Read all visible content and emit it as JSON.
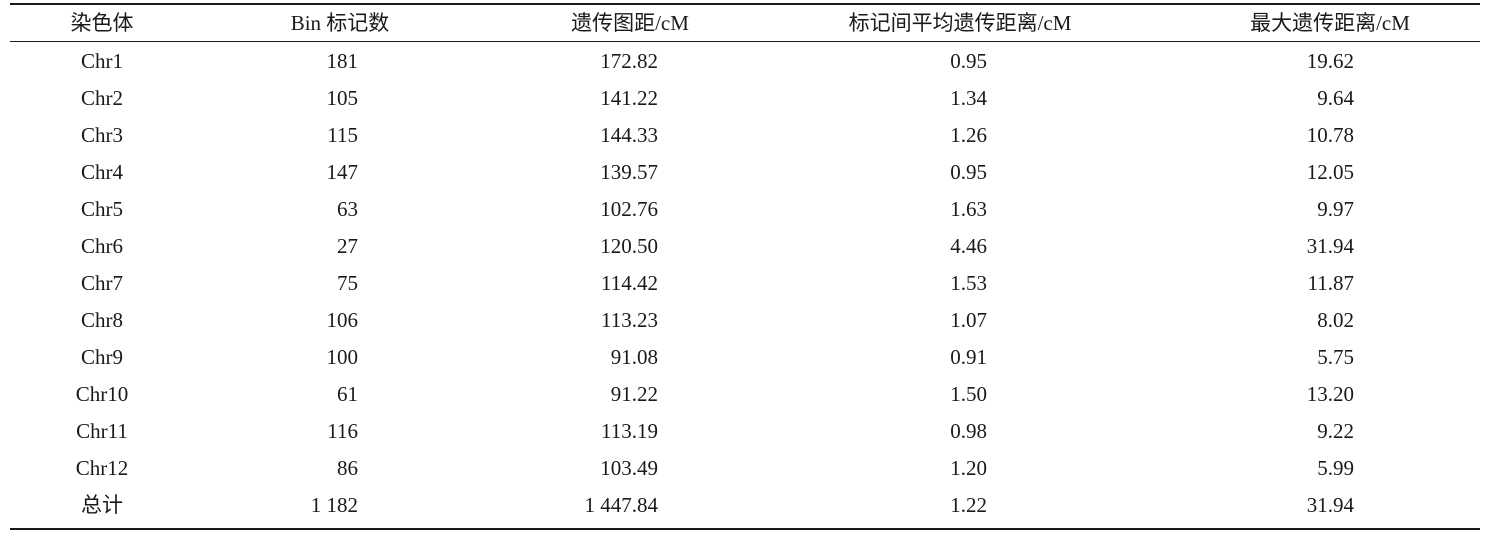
{
  "table": {
    "headers": [
      "染色体",
      "Bin 标记数",
      "遗传图距/cM",
      "标记间平均遗传距离/cM",
      "最大遗传距离/cM"
    ],
    "rows": [
      [
        "Chr1",
        "181",
        "172.82",
        "0.95",
        "19.62"
      ],
      [
        "Chr2",
        "105",
        "141.22",
        "1.34",
        "9.64"
      ],
      [
        "Chr3",
        "115",
        "144.33",
        "1.26",
        "10.78"
      ],
      [
        "Chr4",
        "147",
        "139.57",
        "0.95",
        "12.05"
      ],
      [
        "Chr5",
        "63",
        "102.76",
        "1.63",
        "9.97"
      ],
      [
        "Chr6",
        "27",
        "120.50",
        "4.46",
        "31.94"
      ],
      [
        "Chr7",
        "75",
        "114.42",
        "1.53",
        "11.87"
      ],
      [
        "Chr8",
        "106",
        "113.23",
        "1.07",
        "8.02"
      ],
      [
        "Chr9",
        "100",
        "91.08",
        "0.91",
        "5.75"
      ],
      [
        "Chr10",
        "61",
        "91.22",
        "1.50",
        "13.20"
      ],
      [
        "Chr11",
        "116",
        "113.19",
        "0.98",
        "9.22"
      ],
      [
        "Chr12",
        "86",
        "103.49",
        "1.20",
        "5.99"
      ],
      [
        "总计",
        "1 182",
        "1 447.84",
        "1.22",
        "31.94"
      ]
    ]
  }
}
